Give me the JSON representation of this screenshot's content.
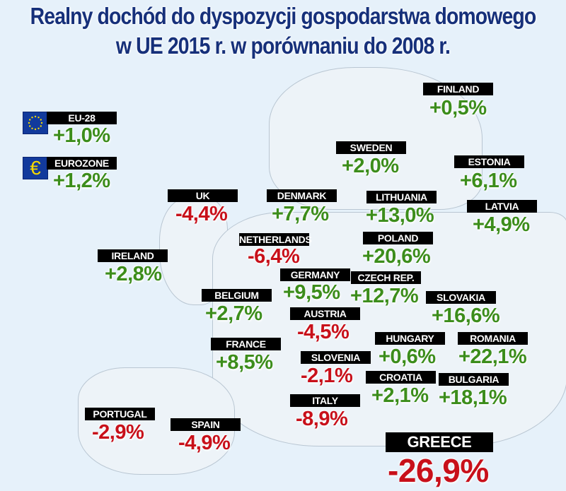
{
  "title": {
    "line1": "Realny dochód do dyspozycji gospodarstwa domowego",
    "line2": "w UE 2015 r. w porównaniu do 2008 r."
  },
  "colors": {
    "positive": "#3c8d1b",
    "negative": "#c8101a",
    "title": "#16307a",
    "label_bg": "#000000",
    "background": "#e6f1fa"
  },
  "aggregates": [
    {
      "name": "EU-28",
      "value": "+1,0%",
      "icon": "eu-flag-icon"
    },
    {
      "name": "EUROZONE",
      "value": "+1,2%",
      "icon": "euro-sign-icon"
    }
  ],
  "countries": [
    {
      "name": "FINLAND",
      "value": "+0,5%"
    },
    {
      "name": "SWEDEN",
      "value": "+2,0%"
    },
    {
      "name": "ESTONIA",
      "value": "+6,1%"
    },
    {
      "name": "UK",
      "value": "-4,4%"
    },
    {
      "name": "DENMARK",
      "value": "+7,7%"
    },
    {
      "name": "LITHUANIA",
      "value": "+13,0%"
    },
    {
      "name": "LATVIA",
      "value": "+4,9%"
    },
    {
      "name": "NETHERLANDS",
      "value": "-6,4%"
    },
    {
      "name": "POLAND",
      "value": "+20,6%"
    },
    {
      "name": "IRELAND",
      "value": "+2,8%"
    },
    {
      "name": "GERMANY",
      "value": "+9,5%"
    },
    {
      "name": "CZECH REP.",
      "value": "+12,7%"
    },
    {
      "name": "BELGIUM",
      "value": "+2,7%"
    },
    {
      "name": "SLOVAKIA",
      "value": "+16,6%"
    },
    {
      "name": "AUSTRIA",
      "value": "-4,5%"
    },
    {
      "name": "FRANCE",
      "value": "+8,5%"
    },
    {
      "name": "HUNGARY",
      "value": "+0,6%"
    },
    {
      "name": "ROMANIA",
      "value": "+22,1%"
    },
    {
      "name": "SLOVENIA",
      "value": "-2,1%"
    },
    {
      "name": "CROATIA",
      "value": "+2,1%"
    },
    {
      "name": "BULGARIA",
      "value": "+18,1%"
    },
    {
      "name": "ITALY",
      "value": "-8,9%"
    },
    {
      "name": "PORTUGAL",
      "value": "-2,9%"
    },
    {
      "name": "SPAIN",
      "value": "-4,9%"
    },
    {
      "name": "GREECE",
      "value": "-26,9%"
    }
  ]
}
